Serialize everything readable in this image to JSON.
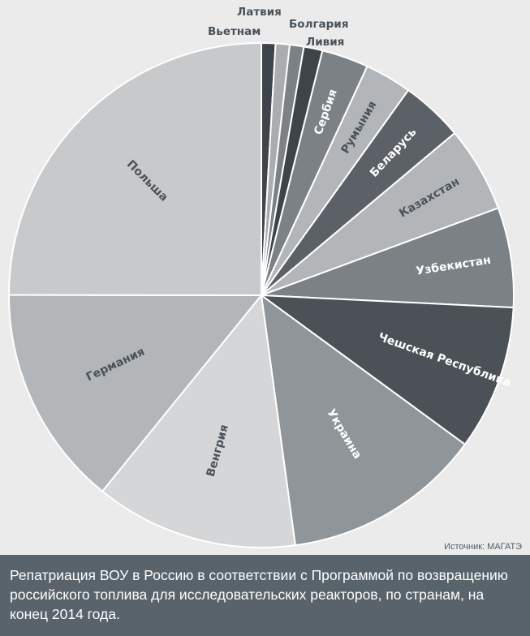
{
  "chart_data": {
    "type": "pie",
    "title": "",
    "slices": [
      {
        "label": "Вьетнам",
        "value": 0.9,
        "color": "#3e444a"
      },
      {
        "label": "Латвия",
        "value": 0.9,
        "color": "#a9adb0"
      },
      {
        "label": "Болгария",
        "value": 0.9,
        "color": "#7b8185"
      },
      {
        "label": "Ливия",
        "value": 1.2,
        "color": "#3e444a"
      },
      {
        "label": "Сербия",
        "value": 3.0,
        "color": "#7b8185"
      },
      {
        "label": "Румыния",
        "value": 3.0,
        "color": "#b3b6b8"
      },
      {
        "label": "Беларусь",
        "value": 4.0,
        "color": "#5b6166"
      },
      {
        "label": "Казахстан",
        "value": 5.5,
        "color": "#b3b6b8"
      },
      {
        "label": "Узбекистан",
        "value": 6.4,
        "color": "#7b8185"
      },
      {
        "label": "Чешская Республика",
        "value": 9.3,
        "color": "#4b5156"
      },
      {
        "label": "Украина",
        "value": 12.8,
        "color": "#909599"
      },
      {
        "label": "Венгрия",
        "value": 13.0,
        "color": "#d4d6d7"
      },
      {
        "label": "Германия",
        "value": 14.2,
        "color": "#b3b6b8"
      },
      {
        "label": "Польша",
        "value": 25.0,
        "color": "#c7c9ca"
      }
    ]
  },
  "source": "Источник: МАГАТЭ",
  "caption": "Репатриация ВОУ в Россию в соответствии с Программой по возвращению российского топлива для исследовательских реакторов, по странам, на конец 2014 года."
}
